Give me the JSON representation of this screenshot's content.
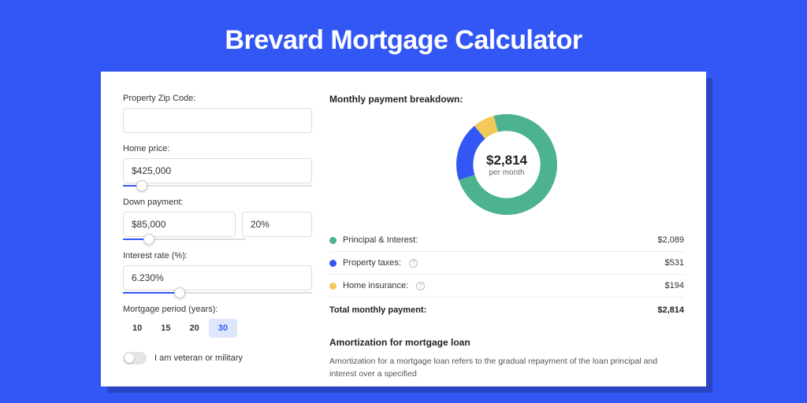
{
  "title": "Brevard Mortgage Calculator",
  "colors": {
    "background": "#3357f5",
    "principal": "#4cb28f",
    "tax": "#3357f5",
    "insurance": "#f3c95a",
    "seg_active_bg": "#dde6fb",
    "seg_active_text": "#3357f5"
  },
  "form": {
    "zip": {
      "label": "Property Zip Code:",
      "value": ""
    },
    "home_price": {
      "label": "Home price:",
      "value": "$425,000",
      "slider_pct": 10
    },
    "down_payment": {
      "label": "Down payment:",
      "value": "$85,000",
      "pct_value": "20%",
      "slider_pct": 21
    },
    "interest_rate": {
      "label": "Interest rate (%):",
      "value": "6.230%",
      "slider_pct": 30
    },
    "period": {
      "label": "Mortgage period (years):",
      "options": [
        "10",
        "15",
        "20",
        "30"
      ],
      "selected": "30"
    },
    "veteran": {
      "label": "I am veteran or military",
      "on": false
    }
  },
  "breakdown": {
    "title": "Monthly payment breakdown:",
    "center_value": "$2,814",
    "center_sub": "per month",
    "chart": {
      "type": "donut",
      "outer_radius": 60,
      "inner_radius": 40,
      "slices": [
        {
          "label": "Principal & Interest:",
          "value": "$2,089",
          "color": "#4cb28f",
          "deg": 267
        },
        {
          "label": "Property taxes:",
          "value": "$531",
          "color": "#3357f5",
          "deg": 68,
          "info": true
        },
        {
          "label": "Home insurance:",
          "value": "$194",
          "color": "#f3c95a",
          "deg": 25,
          "info": true
        }
      ]
    },
    "total_label": "Total monthly payment:",
    "total_value": "$2,814"
  },
  "amortization": {
    "title": "Amortization for mortgage loan",
    "text": "Amortization for a mortgage loan refers to the gradual repayment of the loan principal and interest over a specified"
  }
}
